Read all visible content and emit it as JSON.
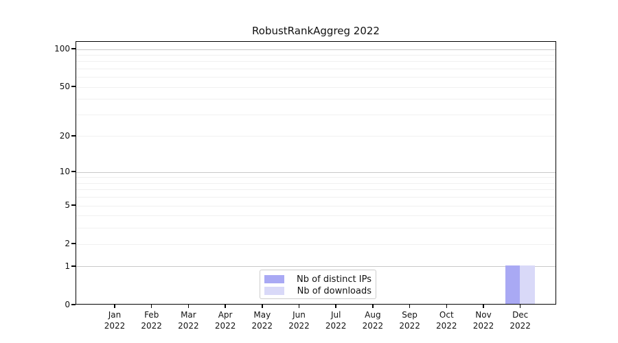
{
  "chart_data": {
    "type": "bar",
    "title": "RobustRankAggreg 2022",
    "year_label": "2022",
    "months": [
      "Jan",
      "Feb",
      "Mar",
      "Apr",
      "May",
      "Jun",
      "Jul",
      "Aug",
      "Sep",
      "Oct",
      "Nov",
      "Dec"
    ],
    "series": [
      {
        "name": "Nb of distinct IPs",
        "color": "#a9a9f4",
        "values": [
          0,
          0,
          0,
          0,
          0,
          0,
          0,
          0,
          0,
          0,
          0,
          1
        ]
      },
      {
        "name": "Nb of downloads",
        "color": "#d9d9f8",
        "values": [
          0,
          0,
          0,
          0,
          0,
          0,
          0,
          0,
          0,
          0,
          0,
          1
        ]
      }
    ],
    "y_ticks": [
      100,
      50,
      20,
      10,
      5,
      2,
      1,
      0
    ],
    "y_minor_gridlines": [
      90,
      80,
      70,
      60,
      40,
      30,
      9,
      8,
      7,
      6,
      4,
      3
    ],
    "ylim": [
      0,
      115
    ],
    "scale": "log10(1+x)",
    "grid": "horizontal",
    "legend": {
      "position": "lower-center-inside"
    },
    "colors": {
      "decade_gridline": "#c8c8c8",
      "minor_gridline": "#f0f0f0",
      "axis": "#000000",
      "legend_border": "#cccccc",
      "background": "#ffffff"
    }
  }
}
